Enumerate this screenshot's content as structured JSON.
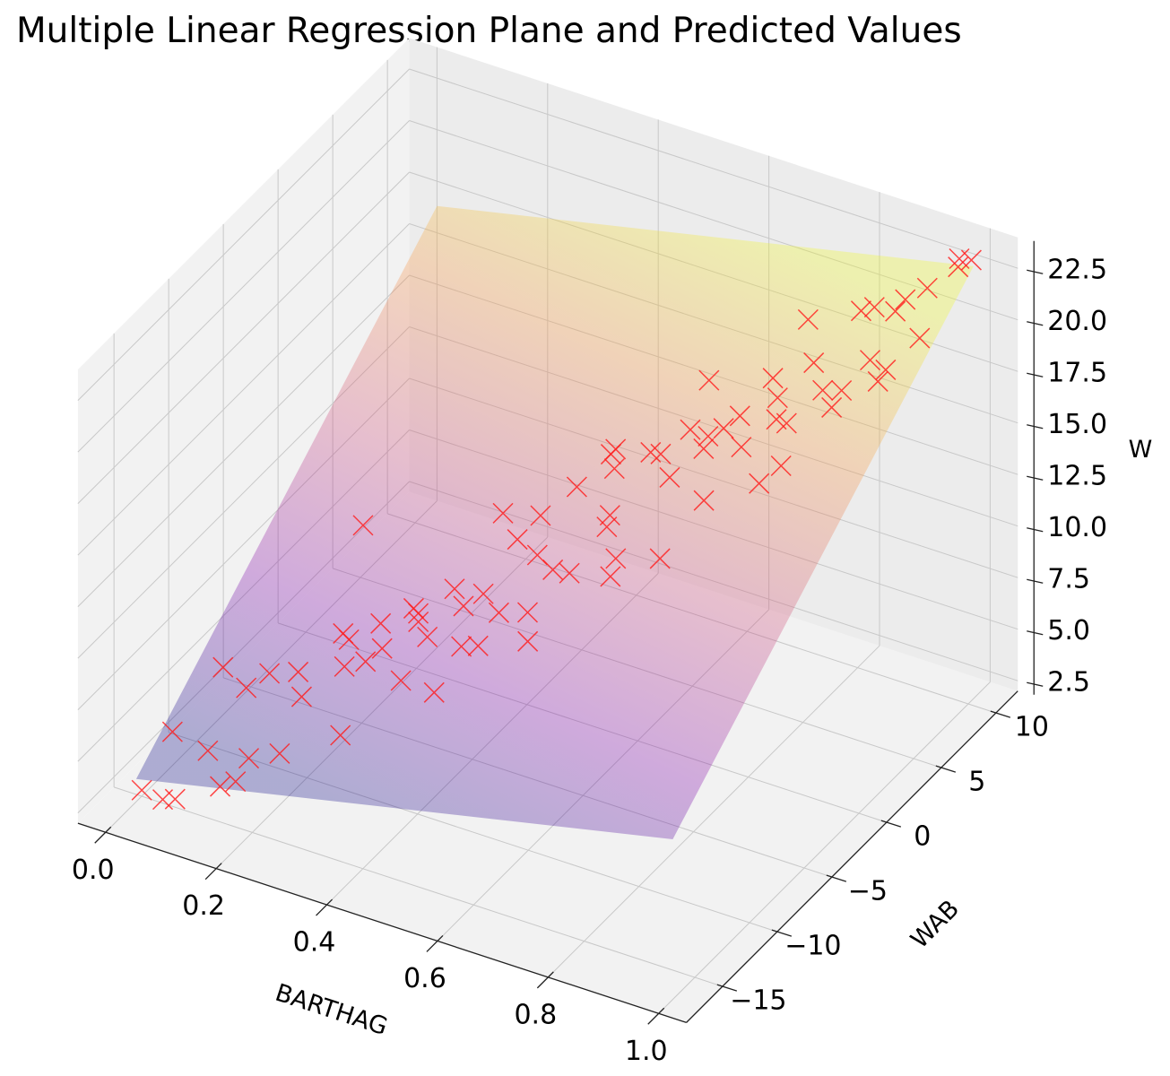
{
  "chart_data": {
    "type": "scatter3d-with-surface",
    "title": "Multiple Linear Regression Plane and Predicted Values",
    "xlabel": "BARTHAG",
    "ylabel": "WAB",
    "zlabel": "W",
    "xlim": [
      -0.05,
      1.05
    ],
    "ylim": [
      -18.3,
      12
    ],
    "zlim": [
      2,
      24
    ],
    "xticks": [
      {
        "v": 0.0,
        "label": "0.0"
      },
      {
        "v": 0.2,
        "label": "0.2"
      },
      {
        "v": 0.4,
        "label": "0.4"
      },
      {
        "v": 0.6,
        "label": "0.6"
      },
      {
        "v": 0.8,
        "label": "0.8"
      },
      {
        "v": 1.0,
        "label": "1.0"
      }
    ],
    "yticks": [
      {
        "v": -15,
        "label": "−15"
      },
      {
        "v": -10,
        "label": "−10"
      },
      {
        "v": -5,
        "label": "−5"
      },
      {
        "v": 0,
        "label": "0"
      },
      {
        "v": 5,
        "label": "5"
      },
      {
        "v": 10,
        "label": "10"
      }
    ],
    "zticks": [
      {
        "v": 2.5,
        "label": "2.5"
      },
      {
        "v": 5,
        "label": "5.0"
      },
      {
        "v": 7.5,
        "label": "7.5"
      },
      {
        "v": 10,
        "label": "10.0"
      },
      {
        "v": 12.5,
        "label": "12.5"
      },
      {
        "v": 15,
        "label": "15.0"
      },
      {
        "v": 17.5,
        "label": "17.5"
      },
      {
        "v": 20,
        "label": "20.0"
      },
      {
        "v": 22.5,
        "label": "22.5"
      }
    ],
    "grid": true,
    "plane": {
      "barthag": [
        0.0,
        0.97
      ],
      "wab": [
        -15.5,
        12
      ],
      "w": [
        [
          3.1,
          16.3
        ],
        [
          8.7,
          21.9
        ]
      ],
      "colormap": "plasma",
      "alpha": 0.3
    },
    "marker": "x",
    "marker_color": "#ff1a1a",
    "points_columns": [
      "BARTHAG",
      "WAB",
      "W"
    ],
    "points": [
      [
        0.02,
        -16.0,
        3.0
      ],
      [
        0.1,
        -17.0,
        3.8
      ],
      [
        0.03,
        -13.7,
        4.7
      ],
      [
        0.05,
        -15.6,
        2.6
      ],
      [
        0.07,
        -11.1,
        6.8
      ],
      [
        0.09,
        -13.5,
        4.2
      ],
      [
        0.11,
        -11.0,
        6.1
      ],
      [
        0.13,
        -14.4,
        3.3
      ],
      [
        0.15,
        -10.9,
        7.1
      ],
      [
        0.17,
        -13.8,
        4.7
      ],
      [
        0.19,
        -10.3,
        7.2
      ],
      [
        0.21,
        -7.2,
        7.6
      ],
      [
        0.22,
        -11.5,
        6.9
      ],
      [
        0.24,
        -8.6,
        7.0
      ],
      [
        0.26,
        -9.2,
        8.8
      ],
      [
        0.27,
        -6.8,
        8.4
      ],
      [
        0.29,
        -9.2,
        8.0
      ],
      [
        0.3,
        -5.3,
        8.6
      ],
      [
        0.32,
        -9.2,
        8.9
      ],
      [
        0.33,
        -6.4,
        9.2
      ],
      [
        0.35,
        -7.4,
        9.5
      ],
      [
        0.36,
        -4.6,
        9.7
      ],
      [
        0.38,
        -8.1,
        9.4
      ],
      [
        0.39,
        -5.3,
        9.5
      ],
      [
        0.41,
        -2.7,
        12.8
      ],
      [
        0.42,
        -5.0,
        10.2
      ],
      [
        0.44,
        -2.9,
        11.9
      ],
      [
        0.45,
        -5.1,
        9.6
      ],
      [
        0.47,
        -2.3,
        13.0
      ],
      [
        0.48,
        -3.1,
        11.6
      ],
      [
        0.5,
        -0.5,
        13.7
      ],
      [
        0.51,
        -3.2,
        11.2
      ],
      [
        0.53,
        1.1,
        14.7
      ],
      [
        0.54,
        -3.2,
        11.3
      ],
      [
        0.56,
        -0.1,
        14.9
      ],
      [
        0.57,
        -1.3,
        12.8
      ],
      [
        0.59,
        1.7,
        15.0
      ],
      [
        0.6,
        -2.0,
        11.9
      ],
      [
        0.62,
        1.1,
        15.5
      ],
      [
        0.63,
        3.3,
        15.6
      ],
      [
        0.65,
        0.4,
        15.0
      ],
      [
        0.66,
        3.0,
        15.1
      ],
      [
        0.68,
        2.4,
        16.2
      ],
      [
        0.69,
        4.8,
        16.0
      ],
      [
        0.71,
        2.3,
        16.9
      ],
      [
        0.72,
        6.3,
        17.3
      ],
      [
        0.74,
        2.4,
        16.2
      ],
      [
        0.75,
        5.1,
        16.2
      ],
      [
        0.77,
        4.2,
        17.9
      ],
      [
        0.78,
        7.0,
        18.2
      ],
      [
        0.8,
        3.5,
        17.3
      ],
      [
        0.81,
        6.3,
        17.5
      ],
      [
        0.83,
        8.8,
        20.2
      ],
      [
        0.84,
        5.6,
        17.3
      ],
      [
        0.86,
        8.5,
        20.8
      ],
      [
        0.87,
        7.6,
        18.8
      ],
      [
        0.88,
        9.4,
        20.3
      ],
      [
        0.89,
        7.3,
        18.1
      ],
      [
        0.9,
        9.3,
        21.1
      ],
      [
        0.91,
        7.0,
        19.0
      ],
      [
        0.92,
        10.3,
        21.3
      ],
      [
        0.93,
        9.1,
        19.6
      ],
      [
        0.95,
        11.6,
        21.9
      ],
      [
        0.97,
        11.8,
        22.3
      ],
      [
        0.96,
        11.2,
        22.6
      ],
      [
        0.25,
        -7.4,
        13.3
      ],
      [
        0.4,
        -6.0,
        8.0
      ],
      [
        0.55,
        0.0,
        12.5
      ],
      [
        0.62,
        -3.5,
        12.0
      ],
      [
        0.7,
        1.0,
        14.0
      ],
      [
        0.35,
        -9.0,
        7.5
      ],
      [
        0.45,
        -7.0,
        9.0
      ],
      [
        0.58,
        -1.0,
        16.5
      ],
      [
        0.8,
        3.0,
        15.5
      ],
      [
        0.75,
        8.0,
        19.5
      ],
      [
        0.2,
        -12.5,
        4.5
      ],
      [
        0.15,
        -14.0,
        3.5
      ],
      [
        0.5,
        -5.0,
        10.0
      ],
      [
        0.65,
        4.0,
        17.8
      ],
      [
        0.85,
        6.0,
        18.0
      ],
      [
        0.3,
        -12.0,
        6.0
      ],
      [
        0.42,
        -9.5,
        7.8
      ],
      [
        0.52,
        -6.0,
        9.3
      ],
      [
        0.68,
        -2.0,
        12.6
      ],
      [
        0.78,
        2.0,
        15.0
      ]
    ]
  }
}
